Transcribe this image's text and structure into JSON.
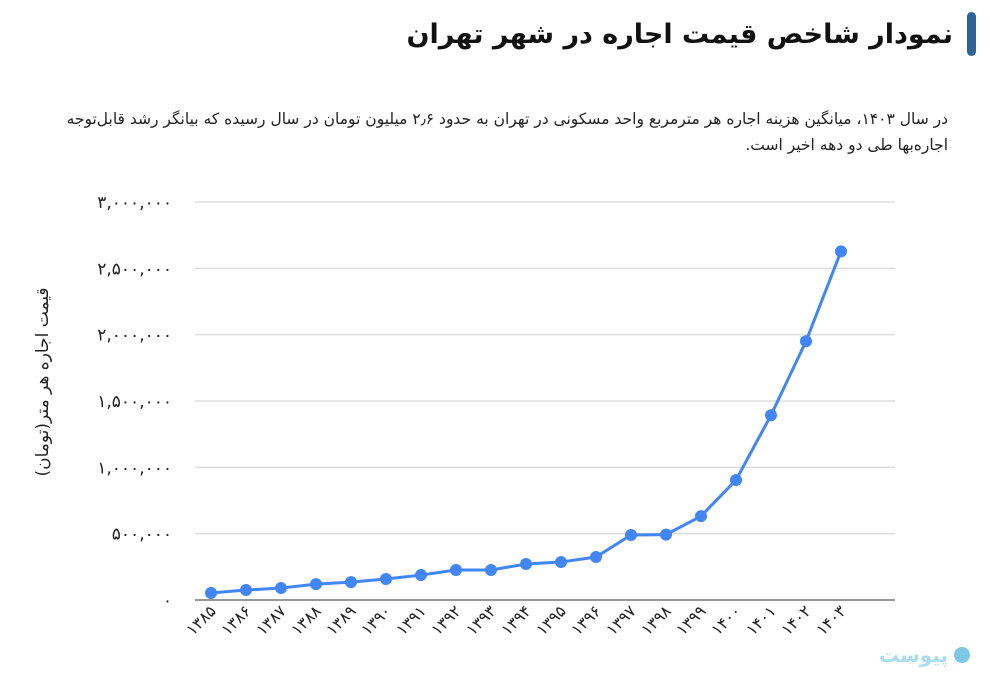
{
  "header": {
    "title": "نمودار شاخص قیمت اجاره در شهر تهران",
    "accent_color": "#2f6296"
  },
  "description": "در سال ۱۴۰۳، میانگین  هزینه اجاره هر مترمربع واحد مسکونی در تهران به حدود ۲٫۶ میلیون تومان در سال رسیده که بیانگر رشد قابل‌توجه اجاره‌بها طی دو دهه اخیر است.",
  "watermark": {
    "text": "پیوست",
    "icon": "pivest-logo-icon"
  },
  "chart_data": {
    "type": "line",
    "title": "نمودار شاخص قیمت اجاره در شهر تهران",
    "xlabel": "",
    "ylabel": "قیمت اجاره هر متر(تومان)",
    "ylim": [
      0,
      3000000
    ],
    "grid": true,
    "legend": "none",
    "line_color": "#4285f4",
    "yticks": [
      0,
      500000,
      1000000,
      1500000,
      2000000,
      2500000,
      3000000
    ],
    "ytick_labels": [
      "۰",
      "۵۰۰,۰۰۰",
      "۱,۰۰۰,۰۰۰",
      "۱,۵۰۰,۰۰۰",
      "۲,۰۰۰,۰۰۰",
      "۲,۵۰۰,۰۰۰",
      "۳,۰۰۰,۰۰۰"
    ],
    "categories": [
      "۱۳۸۵",
      "۱۳۸۶",
      "۱۳۸۷",
      "۱۳۸۸",
      "۱۳۸۹",
      "۱۳۹۰",
      "۱۳۹۱",
      "۱۳۹۲",
      "۱۳۹۳",
      "۱۳۹۴",
      "۱۳۹۵",
      "۱۳۹۶",
      "۱۳۹۷",
      "۱۳۹۸",
      "۱۳۹۹",
      "۱۴۰۰",
      "۱۴۰۱",
      "۱۴۰۲",
      "۱۴۰۳"
    ],
    "x": [
      1385,
      1386,
      1387,
      1388,
      1389,
      1390,
      1391,
      1392,
      1393,
      1394,
      1395,
      1396,
      1397,
      1398,
      1399,
      1400,
      1401,
      1402,
      1403
    ],
    "series": [
      {
        "name": "قیمت اجاره هر متر",
        "values": [
          53000,
          75000,
          90000,
          120000,
          135000,
          158000,
          188000,
          226000,
          226000,
          271000,
          286000,
          324000,
          490000,
          493000,
          632000,
          904000,
          1393000,
          1950000,
          2628000
        ]
      }
    ]
  }
}
